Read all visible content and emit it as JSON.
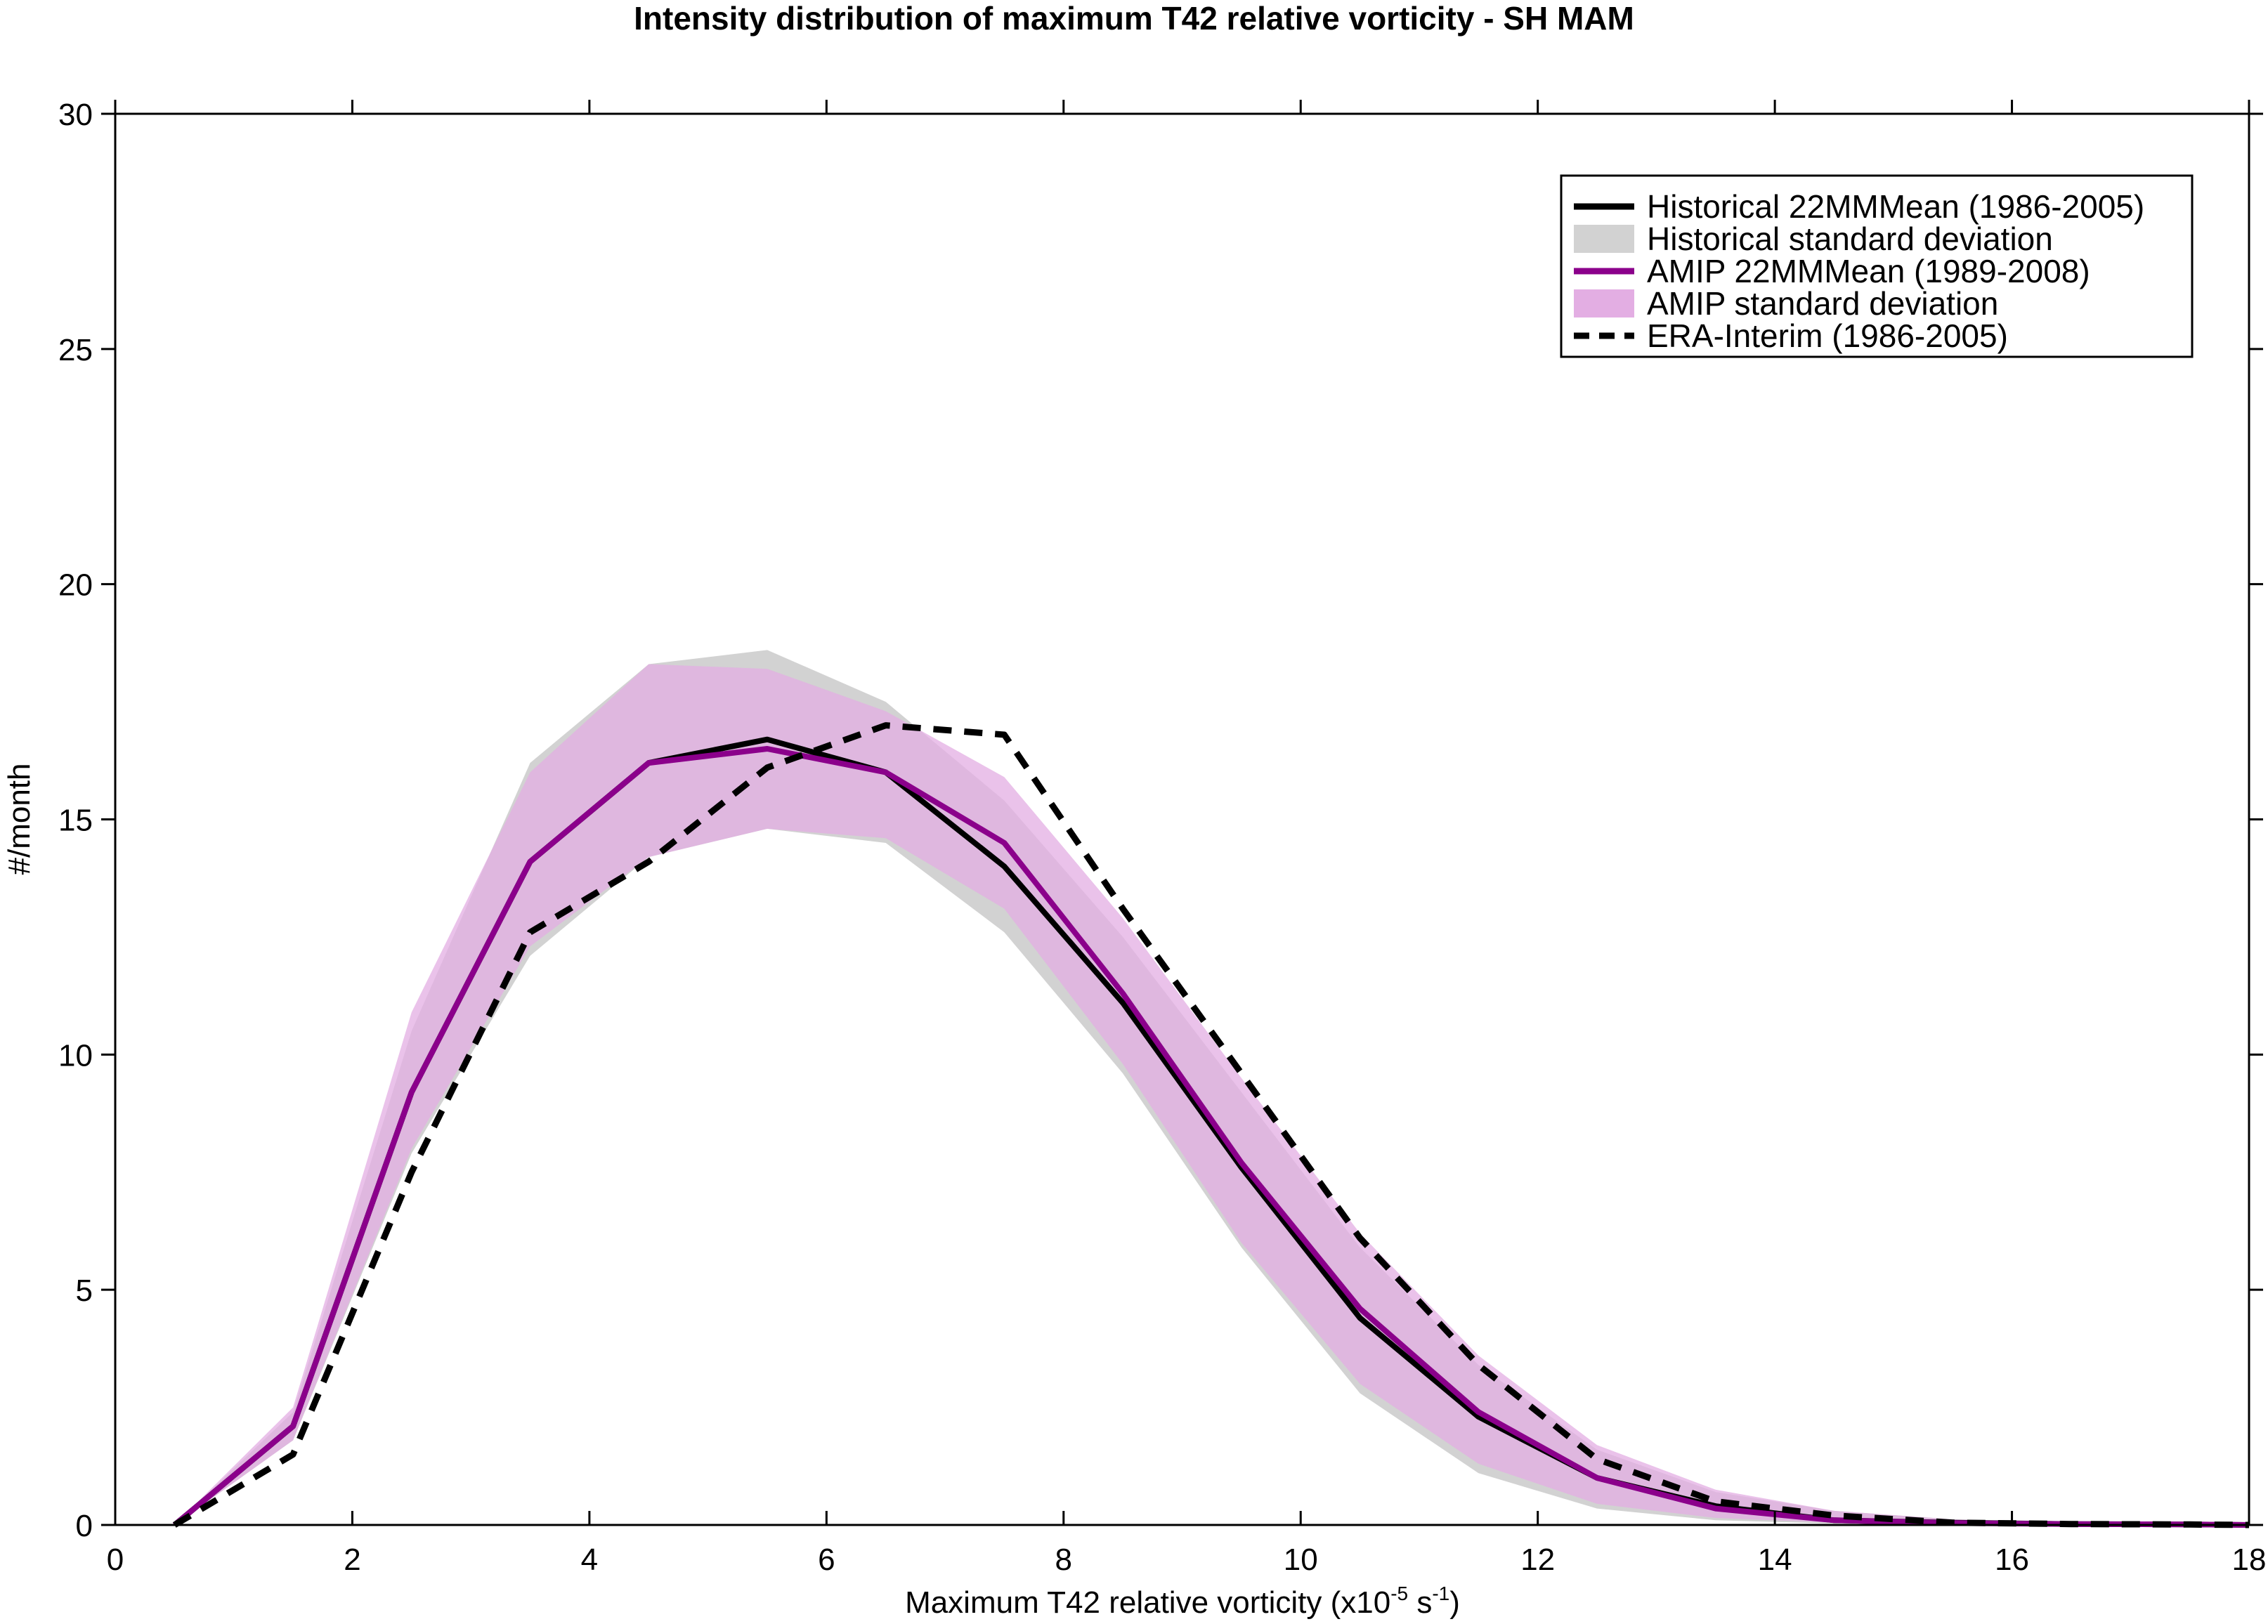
{
  "chart_data": {
    "type": "line",
    "title": "Intensity distribution of maximum T42 relative vorticity - SH MAM",
    "xlabel": {
      "prefix": "Maximum T42 relative vorticity (x10",
      "sup1": "-5",
      "mid": " s",
      "sup2": "-1",
      "suffix": ")"
    },
    "ylabel": "#/month",
    "xlim": [
      0,
      18
    ],
    "ylim": [
      0,
      30
    ],
    "xticks": [
      "0",
      "2",
      "4",
      "6",
      "8",
      "10",
      "12",
      "14",
      "16",
      "18"
    ],
    "yticks": [
      "0",
      "5",
      "10",
      "15",
      "20",
      "25",
      "30"
    ],
    "legend_position": "top-right",
    "x": [
      0.5,
      1.5,
      2.5,
      3.5,
      4.5,
      5.5,
      6.5,
      7.5,
      8.5,
      9.5,
      10.5,
      11.5,
      12.5,
      13.5,
      14.5,
      15.5,
      16.5,
      17.5,
      18
    ],
    "series": [
      {
        "name": "Historical 22MMMean (1986-2005)",
        "kind": "line",
        "color": "#000000",
        "values": [
          0,
          2.1,
          9.2,
          14.1,
          16.2,
          16.7,
          16.0,
          14.0,
          11.1,
          7.6,
          4.4,
          2.3,
          1.0,
          0.4,
          0.1,
          0.05,
          0.02,
          0.01,
          0.0
        ]
      },
      {
        "name": "Historical standard deviation",
        "kind": "band",
        "color": "#d2d2d2",
        "upper": [
          0,
          2.4,
          10.5,
          16.2,
          18.3,
          18.6,
          17.5,
          15.4,
          12.5,
          9.2,
          5.9,
          3.4,
          1.6,
          0.7,
          0.3,
          0.12,
          0.05,
          0.02,
          0.01
        ],
        "lower": [
          0,
          1.8,
          7.9,
          12.1,
          14.2,
          14.8,
          14.5,
          12.6,
          9.6,
          5.9,
          2.8,
          1.1,
          0.35,
          0.1,
          0.03,
          0.01,
          0.0,
          0.0,
          0.0
        ]
      },
      {
        "name": "AMIP 22MMMean (1989-2008)",
        "kind": "line",
        "color": "#8b008b",
        "values": [
          0,
          2.1,
          9.2,
          14.1,
          16.2,
          16.5,
          16.0,
          14.5,
          11.3,
          7.7,
          4.6,
          2.4,
          1.0,
          0.35,
          0.1,
          0.04,
          0.02,
          0.01,
          0.0
        ]
      },
      {
        "name": "AMIP standard deviation",
        "kind": "band",
        "color": "#e3aee3",
        "upper": [
          0,
          2.5,
          10.9,
          16.0,
          18.3,
          18.2,
          17.3,
          15.9,
          12.9,
          9.5,
          6.2,
          3.6,
          1.7,
          0.75,
          0.3,
          0.12,
          0.05,
          0.02,
          0.01
        ],
        "lower": [
          0,
          1.8,
          8.0,
          12.3,
          14.2,
          14.8,
          14.6,
          13.1,
          9.8,
          6.0,
          3.0,
          1.3,
          0.45,
          0.15,
          0.05,
          0.02,
          0.01,
          0.0,
          0.0
        ]
      },
      {
        "name": "ERA-Interim (1986-2005)",
        "kind": "dashed",
        "color": "#000000",
        "values": [
          0,
          1.5,
          7.5,
          12.6,
          14.1,
          16.1,
          17.0,
          16.8,
          13.1,
          9.6,
          6.1,
          3.4,
          1.4,
          0.5,
          0.2,
          0.05,
          0.02,
          0.01,
          0.0
        ]
      }
    ]
  }
}
